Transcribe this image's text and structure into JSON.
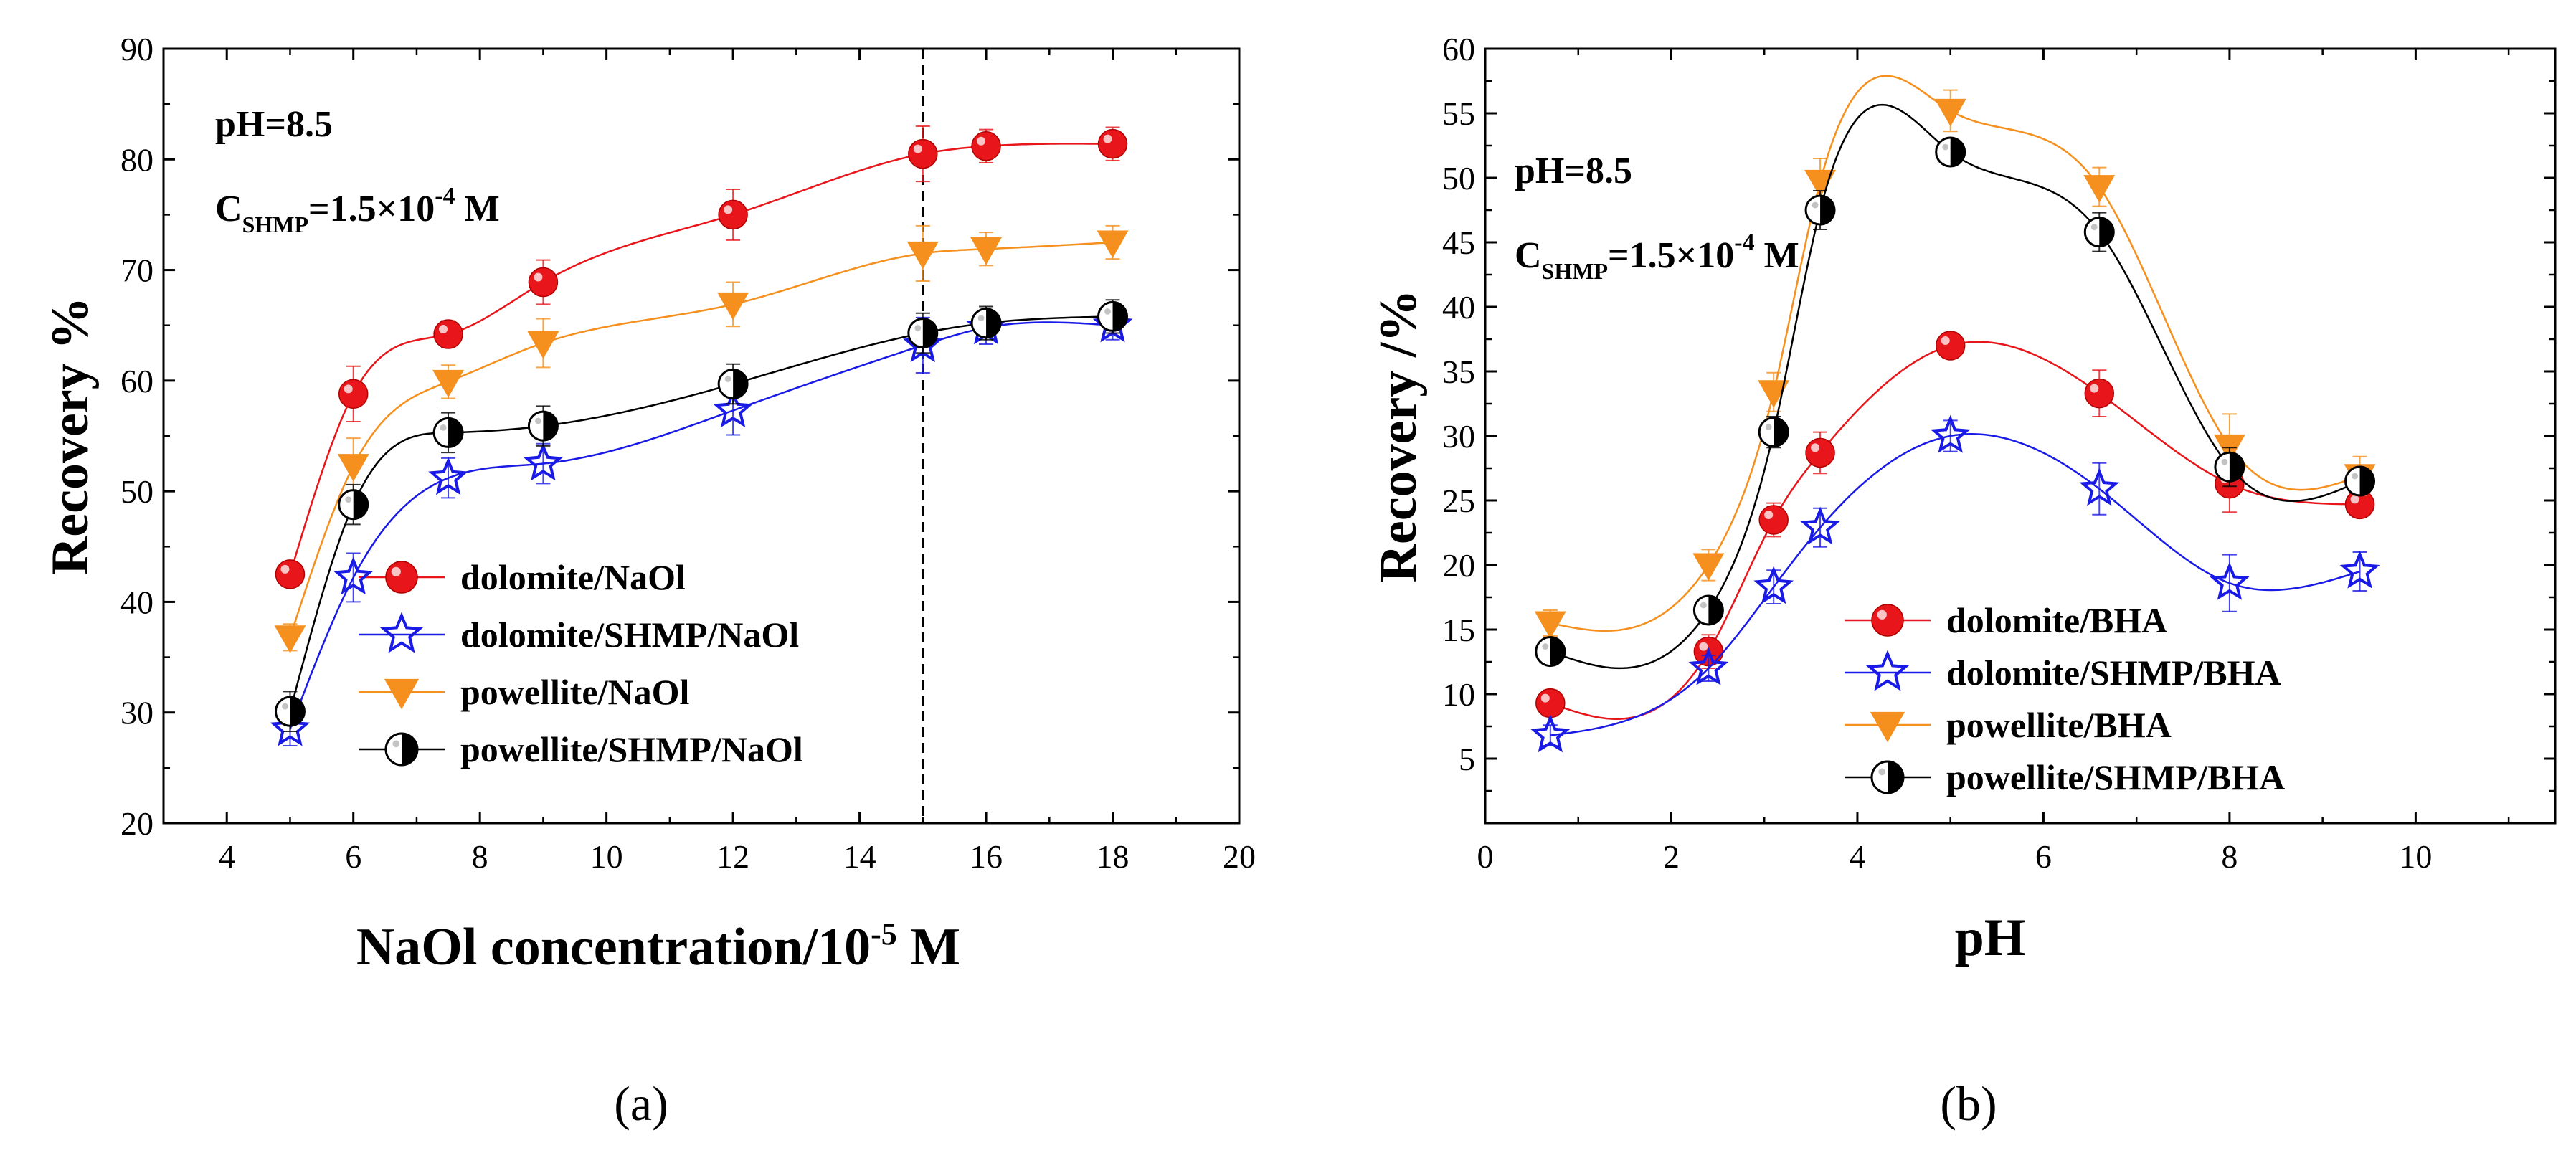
{
  "colors": {
    "dolomite": "#e8161b",
    "dolomite_shmp": "#1a1ae6",
    "powellite": "#f5901e",
    "powellite_shmp": "#000000"
  },
  "chart_data": [
    {
      "id": "a",
      "type": "scatter",
      "caption": "(a)",
      "xlabel": "NaOl concentration/10",
      "xlabel_sup": "-5",
      "xlabel_tail": " M",
      "ylabel": "Recovery %",
      "xlim": [
        3,
        20
      ],
      "ylim": [
        20,
        90
      ],
      "xticks": [
        4,
        6,
        8,
        10,
        12,
        14,
        16,
        18,
        20
      ],
      "yticks": [
        20,
        30,
        40,
        50,
        60,
        70,
        80,
        90
      ],
      "annotation_ph": "pH=8.5",
      "annotation_c_main": "C",
      "annotation_c_sub": "SHMP",
      "annotation_c_val": "=1.5×10",
      "annotation_c_sup": "-4",
      "annotation_c_unit": " M",
      "vline_x": 15,
      "series": [
        {
          "name": "dolomite/NaOl",
          "marker": "circle",
          "color": "#e8161b",
          "x": [
            5,
            6,
            7.5,
            9,
            12,
            15,
            16,
            18
          ],
          "y": [
            42.5,
            58.8,
            64.2,
            68.9,
            75.0,
            80.5,
            81.2,
            81.4
          ],
          "err": [
            1.0,
            2.5,
            1.2,
            2.0,
            2.3,
            2.5,
            1.5,
            1.5
          ]
        },
        {
          "name": "dolomite/SHMP/NaOl",
          "marker": "star",
          "color": "#1a1ae6",
          "x": [
            5,
            6,
            7.5,
            9,
            12,
            15,
            16,
            18
          ],
          "y": [
            28.5,
            42.2,
            51.2,
            52.5,
            57.3,
            63.2,
            64.8,
            65.0
          ],
          "err": [
            1.5,
            2.2,
            1.8,
            1.8,
            2.2,
            2.5,
            1.5,
            1.3
          ]
        },
        {
          "name": "powellite/NaOl",
          "marker": "triangle-down",
          "color": "#f5901e",
          "x": [
            5,
            6,
            7.5,
            9,
            12,
            15,
            16,
            18
          ],
          "y": [
            36.8,
            52.3,
            59.9,
            63.4,
            66.9,
            71.5,
            71.9,
            72.5
          ],
          "err": [
            1.2,
            2.5,
            1.5,
            2.2,
            2.0,
            2.5,
            1.5,
            1.5
          ]
        },
        {
          "name": "powellite/SHMP/NaOl",
          "marker": "half-circle",
          "color": "#000000",
          "x": [
            5,
            6,
            7.5,
            9,
            12,
            15,
            16,
            18
          ],
          "y": [
            30.1,
            48.8,
            55.3,
            55.9,
            59.7,
            64.3,
            65.2,
            65.8
          ],
          "err": [
            1.8,
            1.8,
            1.8,
            1.8,
            1.8,
            1.8,
            1.5,
            1.5
          ]
        }
      ]
    },
    {
      "id": "b",
      "type": "scatter",
      "caption": "(b)",
      "xlabel": "pH",
      "ylabel": "Recovery /%",
      "xlim": [
        0,
        11.5
      ],
      "ylim": [
        0,
        60
      ],
      "xticks": [
        0,
        2,
        4,
        6,
        8,
        10
      ],
      "yticks": [
        5,
        10,
        15,
        20,
        25,
        30,
        35,
        40,
        45,
        50,
        55,
        60
      ],
      "annotation_ph": "pH=8.5",
      "annotation_c_main": "C",
      "annotation_c_sub": "SHMP",
      "annotation_c_val": "=1.5×10",
      "annotation_c_sup": "-4",
      "annotation_c_unit": " M",
      "series": [
        {
          "name": "dolomite/BHA",
          "marker": "circle",
          "color": "#e8161b",
          "x": [
            0.7,
            2.4,
            3.1,
            3.6,
            5.0,
            6.6,
            8.0,
            9.4
          ],
          "y": [
            9.3,
            13.3,
            23.5,
            28.7,
            37.0,
            33.3,
            26.3,
            24.7
          ],
          "err": [
            1.0,
            1.3,
            1.3,
            1.6,
            0.8,
            1.8,
            2.2,
            1.0
          ]
        },
        {
          "name": "dolomite/SHMP/BHA",
          "marker": "star",
          "color": "#1a1ae6",
          "x": [
            0.7,
            2.4,
            3.1,
            3.6,
            5.0,
            6.6,
            8.0,
            9.4
          ],
          "y": [
            6.8,
            12.0,
            18.3,
            22.9,
            30.0,
            25.9,
            18.6,
            19.5
          ],
          "err": [
            0.8,
            1.0,
            1.3,
            1.5,
            1.2,
            2.0,
            2.2,
            1.5
          ]
        },
        {
          "name": "powellite/BHA",
          "marker": "triangle-down",
          "color": "#f5901e",
          "x": [
            0.7,
            2.4,
            3.1,
            3.6,
            5.0,
            6.6,
            8.0,
            9.4
          ],
          "y": [
            15.5,
            20.0,
            33.4,
            49.7,
            55.2,
            49.3,
            29.2,
            26.9
          ],
          "err": [
            1.0,
            1.2,
            1.5,
            1.8,
            1.6,
            1.5,
            2.5,
            1.5
          ]
        },
        {
          "name": "powellite/SHMP/BHA",
          "marker": "half-circle",
          "color": "#000000",
          "x": [
            0.7,
            2.4,
            3.1,
            3.6,
            5.0,
            6.6,
            8.0,
            9.4
          ],
          "y": [
            13.3,
            16.5,
            30.3,
            47.5,
            52.0,
            45.8,
            27.6,
            26.5
          ],
          "err": [
            1.0,
            1.0,
            1.2,
            1.5,
            1.0,
            1.5,
            1.5,
            1.0
          ]
        }
      ]
    }
  ]
}
